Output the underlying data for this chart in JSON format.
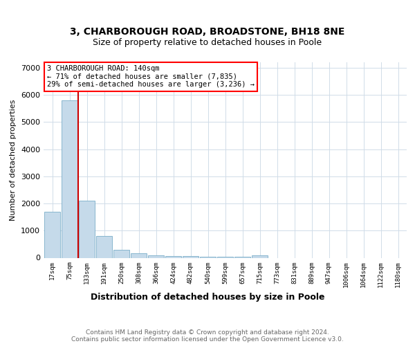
{
  "title1": "3, CHARBOROUGH ROAD, BROADSTONE, BH18 8NE",
  "title2": "Size of property relative to detached houses in Poole",
  "xlabel": "Distribution of detached houses by size in Poole",
  "ylabel": "Number of detached properties",
  "categories": [
    "17sqm",
    "75sqm",
    "133sqm",
    "191sqm",
    "250sqm",
    "308sqm",
    "366sqm",
    "424sqm",
    "482sqm",
    "540sqm",
    "599sqm",
    "657sqm",
    "715sqm",
    "773sqm",
    "831sqm",
    "889sqm",
    "947sqm",
    "1006sqm",
    "1064sqm",
    "1122sqm",
    "1180sqm"
  ],
  "values": [
    1700,
    5800,
    2100,
    800,
    300,
    170,
    100,
    70,
    55,
    45,
    35,
    30,
    80,
    0,
    0,
    0,
    0,
    0,
    0,
    0,
    0
  ],
  "bar_color": "#c5daea",
  "bar_edge_color": "#7aadc8",
  "vline_x": 1.5,
  "vline_color": "#cc0000",
  "annotation_text": "3 CHARBOROUGH ROAD: 140sqm\n← 71% of detached houses are smaller (7,835)\n29% of semi-detached houses are larger (3,236) →",
  "ylim": [
    0,
    7200
  ],
  "yticks": [
    0,
    1000,
    2000,
    3000,
    4000,
    5000,
    6000,
    7000
  ],
  "background_color": "#ffffff",
  "grid_color": "#d0dce8",
  "footer_text": "Contains HM Land Registry data © Crown copyright and database right 2024.\nContains public sector information licensed under the Open Government Licence v3.0.",
  "title1_fontsize": 10,
  "title2_fontsize": 9,
  "xlabel_fontsize": 9,
  "ylabel_fontsize": 8
}
